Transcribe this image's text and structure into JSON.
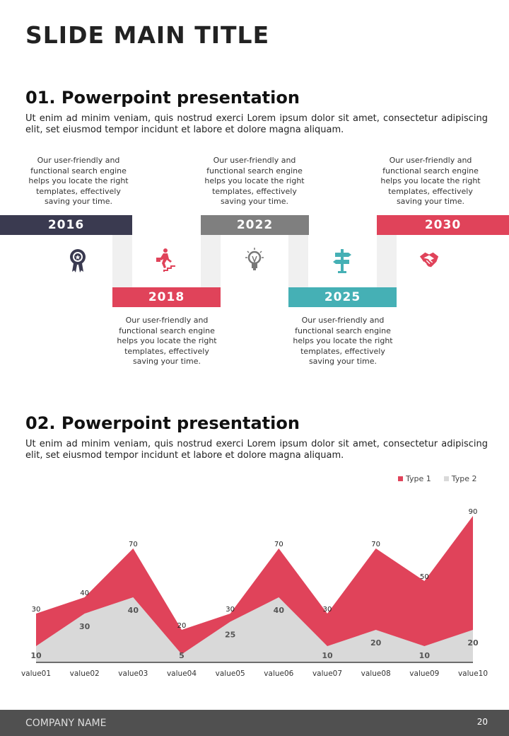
{
  "title": "SLIDE MAIN TITLE",
  "section1": {
    "heading": "01. Powerpoint presentation",
    "body": "Ut enim ad minim veniam, quis nostrud exerci  Lorem ipsum dolor sit amet, consectetur adipiscing elit, set eiusmod tempor incidunt et labore et dolore magna aliquam."
  },
  "timeline": [
    {
      "year": "2016",
      "color": "#3a3a50",
      "icon": "award-ribbon-icon",
      "text": "Our user-friendly and functional search engine helps you locate the right templates, effectively saving your time."
    },
    {
      "year": "2018",
      "color": "#e0435a",
      "icon": "running-up-stairs-icon",
      "text": "Our user-friendly and functional search engine helps you locate the right templates, effectively saving your time."
    },
    {
      "year": "2022",
      "color": "#7f7f7f",
      "icon": "lightbulb-icon",
      "text": "Our user-friendly and functional search engine helps you locate the right templates, effectively saving your time."
    },
    {
      "year": "2025",
      "color": "#45b0b5",
      "icon": "signpost-icon",
      "text": "Our user-friendly and functional search engine helps you locate the right templates, effectively saving your time."
    },
    {
      "year": "2030",
      "color": "#e0435a",
      "icon": "handshake-icon",
      "text": "Our user-friendly and functional search engine helps you locate the right templates, effectively saving your time."
    }
  ],
  "section2": {
    "heading": "02. Powerpoint presentation",
    "body": "Ut enim ad minim veniam, quis nostrud exerci  Lorem ipsum dolor sit amet, consectetur adipiscing elit, set eiusmod tempor incidunt et labore et dolore magna aliquam."
  },
  "chart_data": {
    "type": "area",
    "categories": [
      "value01",
      "value02",
      "value03",
      "value04",
      "value05",
      "value06",
      "value07",
      "value08",
      "value09",
      "value10"
    ],
    "series": [
      {
        "name": "Type 1",
        "color": "#e0435a",
        "values": [
          30,
          40,
          70,
          20,
          30,
          70,
          30,
          70,
          50,
          90
        ]
      },
      {
        "name": "Type 2",
        "color": "#d9d9d9",
        "values": [
          10,
          30,
          40,
          5,
          25,
          40,
          10,
          20,
          10,
          20
        ]
      }
    ],
    "ylim": [
      0,
      90
    ],
    "legend": "top-right",
    "grid": false
  },
  "footer": {
    "company": "COMPANY NAME",
    "page": "20"
  }
}
